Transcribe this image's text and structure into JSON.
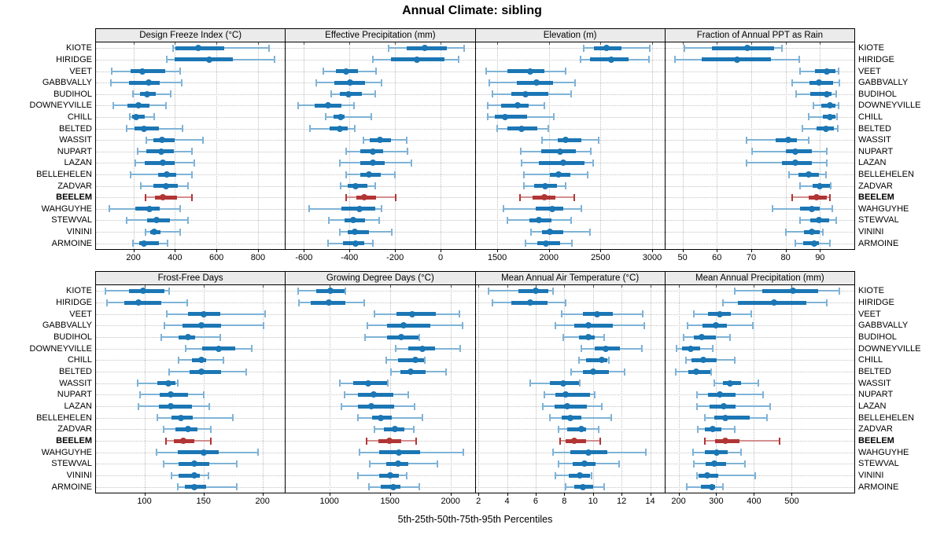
{
  "title": "Annual Climate: sibling",
  "caption": "5th-25th-50th-75th-95th Percentiles",
  "colors": {
    "series_blue": "#1b76b4",
    "series_blue_light": "#7fb3d7",
    "highlight_red": "#b23535",
    "highlight_red_light": "#d48e8e",
    "strip_bg": "#ebebeb",
    "grid": "#c3c3c3"
  },
  "chart_data": {
    "type": "scatter",
    "subtype": "trellis percentile interval dot plot (5th-25th-50th-75th-95th)",
    "title": "Annual Climate: sibling",
    "xlabel": "5th-25th-50th-75th-95th Percentiles",
    "layout_grid": [
      2,
      4
    ],
    "legend": "none",
    "grid": "dotted vertical gridlines + dotted row guides",
    "sites": [
      "KIOTE",
      "HIRIDGE",
      "VEET",
      "GABBVALLY",
      "BUDIHOL",
      "DOWNEYVILLE",
      "CHILL",
      "BELTED",
      "WASSIT",
      "NUPART",
      "LAZAN",
      "BELLEHELEN",
      "ZADVAR",
      "BEELEM",
      "WAHGUYHE",
      "STEWVAL",
      "VININI",
      "ARMOINE"
    ],
    "highlight_site": "BEELEM",
    "percentiles": [
      5,
      25,
      50,
      75,
      95
    ],
    "panels": [
      {
        "label": "Design Freeze Index (°C)",
        "xlim": [
          20,
          930
        ],
        "ticks": [
          200,
          400,
          600,
          800
        ],
        "data": [
          [
            393,
            402,
            514,
            637,
            853
          ],
          [
            360,
            400,
            565,
            678,
            881
          ],
          [
            96,
            185,
            245,
            352,
            425
          ],
          [
            92,
            178,
            273,
            328,
            432
          ],
          [
            197,
            233,
            267,
            308,
            381
          ],
          [
            103,
            170,
            223,
            277,
            358
          ],
          [
            182,
            195,
            214,
            254,
            301
          ],
          [
            166,
            204,
            251,
            324,
            438
          ],
          [
            261,
            296,
            339,
            397,
            537
          ],
          [
            220,
            261,
            334,
            394,
            482
          ],
          [
            208,
            254,
            341,
            400,
            495
          ],
          [
            185,
            318,
            360,
            406,
            482
          ],
          [
            235,
            296,
            358,
            413,
            463
          ],
          [
            257,
            305,
            343,
            410,
            482
          ],
          [
            84,
            208,
            277,
            328,
            425
          ],
          [
            168,
            265,
            311,
            375,
            463
          ],
          [
            257,
            280,
            301,
            330,
            425
          ],
          [
            197,
            229,
            251,
            324,
            365
          ]
        ]
      },
      {
        "label": "Effective Precipitation (mm)",
        "xlim": [
          -680,
          150
        ],
        "ticks": [
          -600,
          -400,
          -200,
          0
        ],
        "data": [
          [
            -230,
            -150,
            -69,
            29,
            103
          ],
          [
            -297,
            -218,
            -104,
            17,
            78
          ],
          [
            -514,
            -460,
            -414,
            -362,
            -284
          ],
          [
            -546,
            -466,
            -397,
            -333,
            -259
          ],
          [
            -480,
            -443,
            -405,
            -345,
            -288
          ],
          [
            -626,
            -552,
            -494,
            -434,
            -382
          ],
          [
            -503,
            -471,
            -439,
            -420,
            -305
          ],
          [
            -575,
            -489,
            -443,
            -408,
            -377
          ],
          [
            -339,
            -310,
            -267,
            -219,
            -150
          ],
          [
            -416,
            -351,
            -299,
            -253,
            -147
          ],
          [
            -443,
            -351,
            -299,
            -247,
            -129
          ],
          [
            -414,
            -351,
            -313,
            -264,
            -201
          ],
          [
            -439,
            -408,
            -374,
            -322,
            -288
          ],
          [
            -414,
            -370,
            -336,
            -282,
            -196
          ],
          [
            -577,
            -437,
            -356,
            -288,
            -259
          ],
          [
            -491,
            -423,
            -383,
            -333,
            -270
          ],
          [
            -443,
            -408,
            -376,
            -316,
            -215
          ],
          [
            -494,
            -428,
            -374,
            -336,
            -296
          ]
        ]
      },
      {
        "label": "Elevation (m)",
        "xlim": [
          1290,
          3120
        ],
        "ticks": [
          1500,
          2000,
          2500,
          3000
        ],
        "data": [
          [
            2337,
            2437,
            2562,
            2700,
            2980
          ],
          [
            2307,
            2400,
            2605,
            2775,
            2970
          ],
          [
            1395,
            1600,
            1820,
            1955,
            2162
          ],
          [
            1425,
            1687,
            1880,
            2042,
            2250
          ],
          [
            1457,
            1637,
            1770,
            1992,
            2212
          ],
          [
            1405,
            1537,
            1695,
            1805,
            1955
          ],
          [
            1405,
            1480,
            1575,
            1787,
            2045
          ],
          [
            1500,
            1600,
            1737,
            1887,
            1992
          ],
          [
            1930,
            2087,
            2162,
            2312,
            2480
          ],
          [
            1730,
            1925,
            2112,
            2262,
            2407
          ],
          [
            1737,
            1900,
            2142,
            2345,
            2430
          ],
          [
            1757,
            2007,
            2095,
            2205,
            2375
          ],
          [
            1757,
            1855,
            1962,
            2075,
            2162
          ],
          [
            1717,
            1845,
            1957,
            2062,
            2245
          ],
          [
            1562,
            1875,
            2032,
            2142,
            2312
          ],
          [
            1595,
            1812,
            1900,
            2025,
            2212
          ],
          [
            1825,
            1937,
            2012,
            2142,
            2400
          ],
          [
            1775,
            1887,
            1975,
            2112,
            2220
          ]
        ]
      },
      {
        "label": "Fraction of Annual PPT as Rain",
        "xlim": [
          45,
          100
        ],
        "ticks": [
          50,
          60,
          70,
          80,
          90
        ],
        "data": [
          [
            50.6,
            58.6,
            68.8,
            76.6,
            78.9
          ],
          [
            47.8,
            55.5,
            66.0,
            75.8,
            83.9
          ],
          [
            84.1,
            88.5,
            91.9,
            94.4,
            95.5
          ],
          [
            82.0,
            87.0,
            89.8,
            93.8,
            95.7
          ],
          [
            83.0,
            87.1,
            91.9,
            93.4,
            94.8
          ],
          [
            88.1,
            90.4,
            92.9,
            94.5,
            95.5
          ],
          [
            86.8,
            90.8,
            92.8,
            94.4,
            94.9
          ],
          [
            84.9,
            89.1,
            91.7,
            94.0,
            95.2
          ],
          [
            68.6,
            77.0,
            80.7,
            83.4,
            86.8
          ],
          [
            70.3,
            80.0,
            82.8,
            87.6,
            91.9
          ],
          [
            68.6,
            79.0,
            82.8,
            87.7,
            92.0
          ],
          [
            81.1,
            83.8,
            86.7,
            89.6,
            91.7
          ],
          [
            84.2,
            87.9,
            90.0,
            92.9,
            93.2
          ],
          [
            82.0,
            86.8,
            89.0,
            92.1,
            92.9
          ],
          [
            76.2,
            84.3,
            87.7,
            90.0,
            93.6
          ],
          [
            84.1,
            87.1,
            89.8,
            92.7,
            94.8
          ],
          [
            80.0,
            85.3,
            87.7,
            90.0,
            90.9
          ],
          [
            82.8,
            85.1,
            88.3,
            89.8,
            92.8
          ]
        ]
      },
      {
        "label": "Frost-Free Days",
        "xlim": [
          59,
          219
        ],
        "ticks": [
          100,
          150,
          200
        ],
        "data": [
          [
            67,
            87,
            99,
            117,
            121
          ],
          [
            68,
            83,
            95,
            114,
            136
          ],
          [
            119,
            137,
            150,
            164,
            202
          ],
          [
            117,
            132,
            148,
            165,
            201
          ],
          [
            114,
            129,
            137,
            143,
            164
          ],
          [
            135,
            149,
            163,
            177,
            191
          ],
          [
            129,
            140,
            148,
            152,
            167
          ],
          [
            121,
            138,
            148,
            165,
            186
          ],
          [
            94,
            111,
            120,
            126,
            128
          ],
          [
            96,
            113,
            122,
            137,
            150
          ],
          [
            95,
            112,
            122,
            140,
            155
          ],
          [
            111,
            123,
            131,
            141,
            175
          ],
          [
            116,
            126,
            137,
            145,
            156
          ],
          [
            118,
            125,
            133,
            142,
            156
          ],
          [
            110,
            128,
            150,
            163,
            196
          ],
          [
            116,
            129,
            142,
            155,
            178
          ],
          [
            123,
            129,
            142,
            147,
            154
          ],
          [
            128,
            134,
            142,
            152,
            178
          ]
        ]
      },
      {
        "label": "Growing Degree Days (°C)",
        "xlim": [
          640,
          2200
        ],
        "ticks": [
          1000,
          1500,
          2000
        ],
        "data": [
          [
            740,
            890,
            1010,
            1125,
            1135
          ],
          [
            751,
            848,
            994,
            1130,
            1286
          ],
          [
            1372,
            1556,
            1682,
            1881,
            2076
          ],
          [
            1314,
            1476,
            1610,
            1833,
            2097
          ],
          [
            1296,
            1476,
            1593,
            1736,
            1744
          ],
          [
            1550,
            1649,
            1766,
            1870,
            2082
          ],
          [
            1470,
            1567,
            1708,
            1779,
            1788
          ],
          [
            1509,
            1584,
            1669,
            1794,
            1961
          ],
          [
            1084,
            1195,
            1318,
            1473,
            1482
          ],
          [
            1123,
            1236,
            1366,
            1528,
            1649
          ],
          [
            1097,
            1238,
            1344,
            1535,
            1701
          ],
          [
            1238,
            1351,
            1422,
            1517,
            1766
          ],
          [
            1372,
            1448,
            1539,
            1617,
            1697
          ],
          [
            1307,
            1405,
            1496,
            1593,
            1719
          ],
          [
            1249,
            1411,
            1571,
            1751,
            2104
          ],
          [
            1333,
            1470,
            1567,
            1653,
            1892
          ],
          [
            1238,
            1411,
            1502,
            1571,
            1636
          ],
          [
            1329,
            1422,
            1530,
            1589,
            1744
          ]
        ]
      },
      {
        "label": "Mean Annual Air Temperature (°C)",
        "xlim": [
          1.8,
          15.0
        ],
        "ticks": [
          2,
          4,
          6,
          8,
          10,
          12,
          14
        ],
        "data": [
          [
            2.7,
            4.8,
            6.0,
            6.9,
            7.2
          ],
          [
            3.0,
            4.3,
            5.6,
            6.8,
            8.1
          ],
          [
            7.8,
            9.3,
            10.3,
            11.4,
            13.5
          ],
          [
            7.4,
            8.7,
            9.7,
            11.4,
            13.6
          ],
          [
            7.9,
            9.0,
            9.7,
            10.1,
            10.8
          ],
          [
            9.2,
            10.1,
            10.9,
            11.9,
            13.4
          ],
          [
            9.0,
            9.5,
            10.6,
            11.0,
            11.1
          ],
          [
            8.5,
            9.3,
            10.0,
            11.1,
            12.2
          ],
          [
            5.6,
            7.0,
            7.9,
            9.0,
            9.1
          ],
          [
            6.6,
            7.4,
            8.1,
            9.8,
            10.1
          ],
          [
            6.5,
            7.3,
            8.2,
            9.6,
            10.6
          ],
          [
            7.0,
            7.8,
            8.4,
            9.2,
            11.3
          ],
          [
            7.6,
            8.2,
            9.2,
            9.5,
            10.4
          ],
          [
            7.7,
            8.1,
            8.7,
            9.5,
            10.5
          ],
          [
            7.2,
            8.4,
            9.7,
            11.0,
            13.7
          ],
          [
            7.6,
            8.6,
            9.4,
            10.2,
            11.8
          ],
          [
            7.4,
            8.3,
            9.1,
            9.8,
            9.9
          ],
          [
            8.1,
            8.7,
            9.3,
            10.0,
            10.8
          ]
        ]
      },
      {
        "label": "Mean Annual Precipitation (mm)",
        "xlim": [
          165,
          666
        ],
        "ticks": [
          200,
          300,
          400,
          500
        ],
        "data": [
          [
            349,
            421,
            504,
            571,
            626
          ],
          [
            317,
            357,
            453,
            539,
            593
          ],
          [
            241,
            279,
            310,
            339,
            393
          ],
          [
            224,
            264,
            300,
            329,
            396
          ],
          [
            214,
            241,
            261,
            300,
            336
          ],
          [
            194,
            210,
            232,
            257,
            290
          ],
          [
            220,
            235,
            266,
            301,
            350
          ],
          [
            192,
            225,
            246,
            284,
            286
          ],
          [
            295,
            317,
            336,
            366,
            412
          ],
          [
            248,
            279,
            310,
            352,
            424
          ],
          [
            248,
            283,
            319,
            352,
            442
          ],
          [
            270,
            295,
            324,
            388,
            435
          ],
          [
            250,
            269,
            291,
            313,
            348
          ],
          [
            270,
            297,
            324,
            361,
            468
          ],
          [
            239,
            269,
            301,
            331,
            366
          ],
          [
            241,
            272,
            295,
            326,
            377
          ],
          [
            248,
            254,
            276,
            305,
            404
          ],
          [
            222,
            259,
            288,
            297,
            318
          ]
        ]
      }
    ]
  }
}
